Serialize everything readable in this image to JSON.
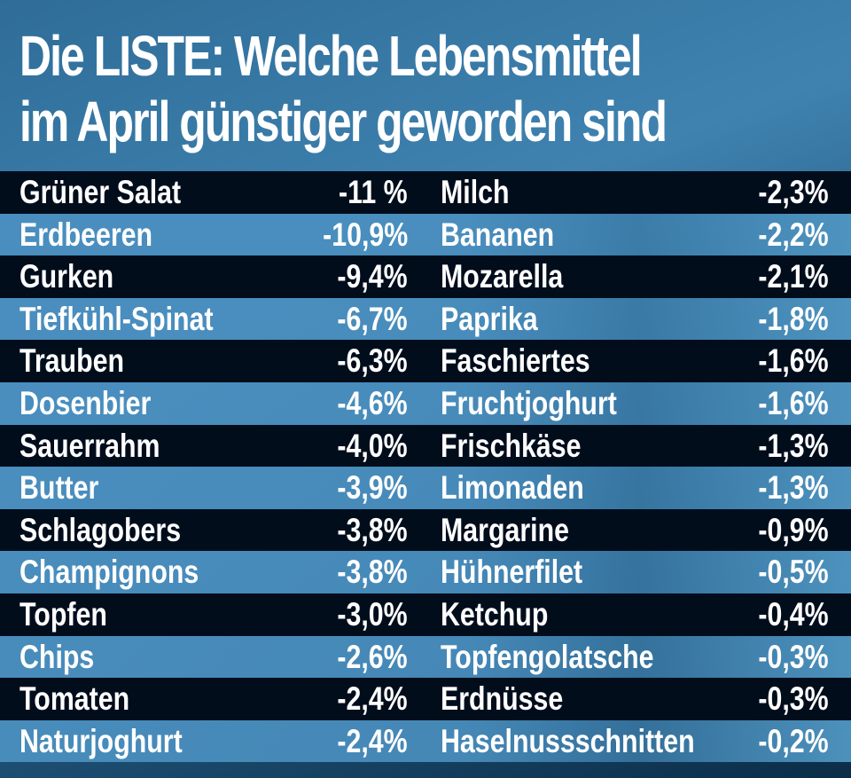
{
  "title_line1": "Die LISTE: Welche Lebensmittel",
  "title_line2": "im April günstiger geworden sind",
  "colors": {
    "dark_row": "#020d1c",
    "light_row": "#4a8fbf",
    "text": "#ffffff"
  },
  "chart_data": {
    "type": "table",
    "title": "Die LISTE: Welche Lebensmittel im April günstiger geworden sind",
    "left": [
      {
        "name": "Grüner Salat",
        "value": "-11 %"
      },
      {
        "name": "Erdbeeren",
        "value": "-10,9%"
      },
      {
        "name": "Gurken",
        "value": "-9,4%"
      },
      {
        "name": "Tiefkühl-Spinat",
        "value": "-6,7%"
      },
      {
        "name": "Trauben",
        "value": "-6,3%"
      },
      {
        "name": "Dosenbier",
        "value": "-4,6%"
      },
      {
        "name": "Sauerrahm",
        "value": "-4,0%"
      },
      {
        "name": "Butter",
        "value": "-3,9%"
      },
      {
        "name": "Schlagobers",
        "value": "-3,8%"
      },
      {
        "name": "Champignons",
        "value": "-3,8%"
      },
      {
        "name": "Topfen",
        "value": "-3,0%"
      },
      {
        "name": "Chips",
        "value": "-2,6%"
      },
      {
        "name": "Tomaten",
        "value": "-2,4%"
      },
      {
        "name": "Naturjoghurt",
        "value": "-2,4%"
      }
    ],
    "right": [
      {
        "name": "Milch",
        "value": "-2,3%"
      },
      {
        "name": "Bananen",
        "value": "-2,2%"
      },
      {
        "name": "Mozarella",
        "value": "-2,1%"
      },
      {
        "name": "Paprika",
        "value": "-1,8%"
      },
      {
        "name": "Faschiertes",
        "value": "-1,6%"
      },
      {
        "name": "Fruchtjoghurt",
        "value": "-1,6%"
      },
      {
        "name": "Frischkäse",
        "value": "-1,3%"
      },
      {
        "name": "Limonaden",
        "value": "-1,3%"
      },
      {
        "name": "Margarine",
        "value": "-0,9%"
      },
      {
        "name": "Hühnerfilet",
        "value": "-0,5%"
      },
      {
        "name": "Ketchup",
        "value": "-0,4%"
      },
      {
        "name": "Topfengolatsche",
        "value": "-0,3%"
      },
      {
        "name": "Erdnüsse",
        "value": "-0,3%"
      },
      {
        "name": "Haselnussschnitten",
        "value": "-0,2%"
      }
    ]
  }
}
